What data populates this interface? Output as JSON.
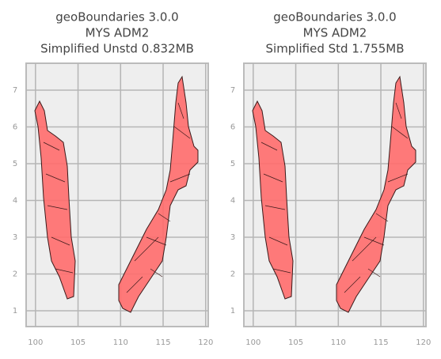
{
  "chart_data": [
    {
      "type": "map",
      "title": [
        "geoBoundaries 3.0.0",
        "MYS ADM2",
        "Simplified Unstd 0.832MB"
      ],
      "xlim": [
        98.9,
        120.3
      ],
      "ylim": [
        0.57,
        7.73
      ],
      "xticks": [
        100,
        105,
        110,
        115,
        120
      ],
      "yticks": [
        1,
        2,
        3,
        4,
        5,
        6,
        7
      ],
      "grid": true,
      "color": "#ff6b6b"
    },
    {
      "type": "map",
      "title": [
        "geoBoundaries 3.0.0",
        "MYS ADM2",
        "Simplified Std 1.755MB"
      ],
      "xlim": [
        98.9,
        120.3
      ],
      "ylim": [
        0.57,
        7.73
      ],
      "xticks": [
        100,
        105,
        110,
        115,
        120
      ],
      "yticks": [
        1,
        2,
        3,
        4,
        5,
        6,
        7
      ],
      "grid": true,
      "color": "#ff6b6b"
    }
  ]
}
